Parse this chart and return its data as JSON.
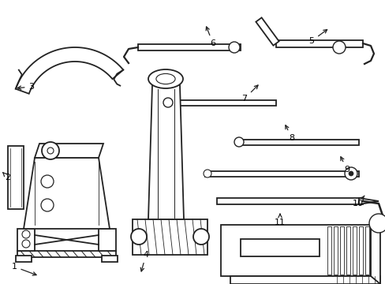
{
  "bg_color": "#ffffff",
  "line_color": "#222222",
  "label_color": "#000000",
  "figsize": [
    4.89,
    3.6
  ],
  "dpi": 100
}
